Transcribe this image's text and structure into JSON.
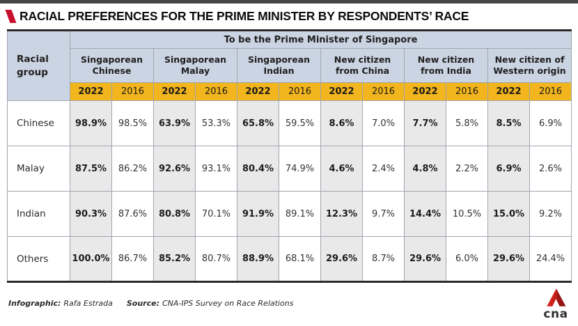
{
  "header": {
    "title": "RACIAL PREFERENCES FOR THE PRIME MINISTER BY RESPONDENTS’ RACE"
  },
  "chart_data": {
    "type": "table",
    "title": "RACIAL PREFERENCES FOR THE PRIME MINISTER BY RESPONDENTS’ RACE",
    "row_header": "Racial group",
    "span_header": "To be the Prime Minister of Singapore",
    "column_groups": [
      "Singaporean Chinese",
      "Singaporean Malay",
      "Singaporean Indian",
      "New citizen from China",
      "New citizen from India",
      "New citizen of Western origin"
    ],
    "year_columns": [
      "2022",
      "2016"
    ],
    "unit": "%",
    "rows": [
      {
        "label": "Chinese",
        "values": [
          98.9,
          98.5,
          63.9,
          53.3,
          65.8,
          59.5,
          8.6,
          7.0,
          7.7,
          5.8,
          8.5,
          6.9
        ]
      },
      {
        "label": "Malay",
        "values": [
          87.5,
          86.2,
          92.6,
          93.1,
          80.4,
          74.9,
          4.6,
          2.4,
          4.8,
          2.2,
          6.9,
          2.6
        ]
      },
      {
        "label": "Indian",
        "values": [
          90.3,
          87.6,
          80.8,
          70.1,
          91.9,
          89.1,
          12.3,
          9.7,
          14.4,
          10.5,
          15.0,
          9.2
        ]
      },
      {
        "label": "Others",
        "values": [
          100.0,
          86.7,
          85.2,
          80.7,
          88.9,
          68.1,
          29.6,
          8.7,
          29.6,
          6.0,
          29.6,
          24.4
        ]
      }
    ]
  },
  "footer": {
    "credit_label": "Infographic:",
    "credit_value": "Rafa Estrada",
    "source_label": "Source:",
    "source_value": "CNA-IPS Survey on Race Relations",
    "logo_text": "cna"
  },
  "colors": {
    "accent_red": "#c8102e",
    "topbar_gray": "#454545",
    "header_blue": "#cbd4e2",
    "year_yellow": "#f2b51d",
    "col2022_gray": "#e9e9e9",
    "logo_red_bright": "#d8271d",
    "logo_red_dark": "#9e1613"
  }
}
